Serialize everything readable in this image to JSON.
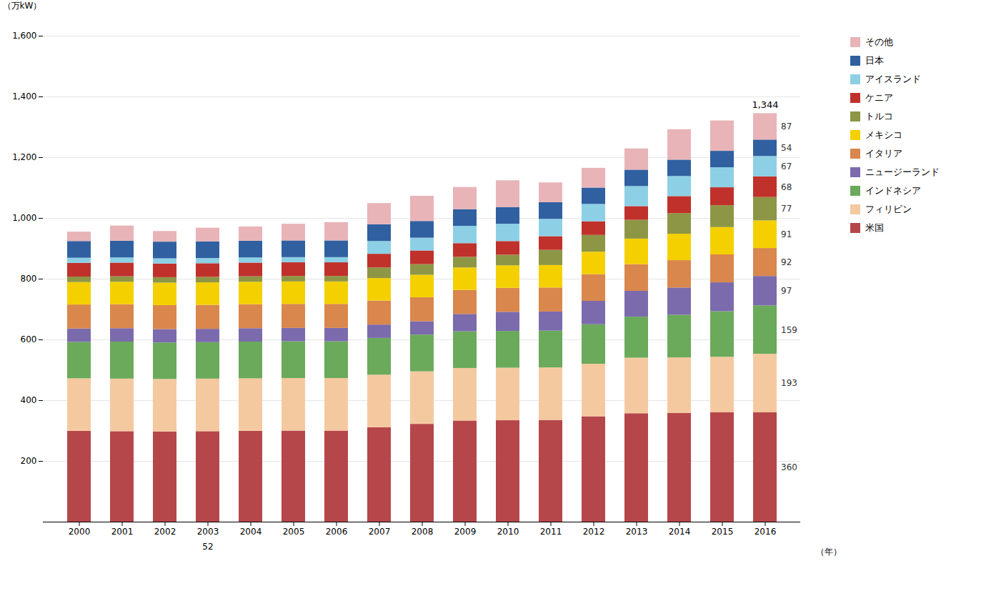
{
  "chart_data": {
    "type": "bar",
    "stacked": true,
    "categories": [
      "2000",
      "2001",
      "2002",
      "2003",
      "2004",
      "2005",
      "2006",
      "2007",
      "2008",
      "2009",
      "2010",
      "2011",
      "2012",
      "2013",
      "2014",
      "2015",
      "2016"
    ],
    "series": [
      {
        "name": "米国",
        "color": "#b5474a",
        "values": [
          299,
          298,
          297,
          298,
          299,
          300,
          300,
          311,
          322,
          333,
          334,
          335,
          347,
          357,
          358,
          360,
          360
        ],
        "value_labels": [
          null,
          null,
          null,
          null,
          null,
          null,
          null,
          null,
          null,
          null,
          null,
          null,
          null,
          null,
          null,
          null,
          "360"
        ]
      },
      {
        "name": "フィリピン",
        "color": "#f5c9a0",
        "values": [
          173,
          173,
          173,
          173,
          173,
          173,
          173,
          173,
          173,
          173,
          173,
          173,
          173,
          183,
          183,
          183,
          193
        ],
        "value_labels": [
          null,
          null,
          null,
          null,
          null,
          null,
          null,
          null,
          null,
          null,
          null,
          null,
          null,
          null,
          null,
          null,
          "193"
        ]
      },
      {
        "name": "インドネシア",
        "color": "#6aaa5a",
        "values": [
          120,
          122,
          120,
          120,
          121,
          121,
          121,
          121,
          121,
          121,
          121,
          121,
          130,
          135,
          140,
          150,
          159
        ],
        "value_labels": [
          null,
          null,
          null,
          null,
          null,
          null,
          null,
          null,
          null,
          null,
          null,
          null,
          null,
          null,
          null,
          null,
          "159"
        ]
      },
      {
        "name": "ニュージーランド",
        "color": "#7b6bad",
        "values": [
          44,
          44,
          44,
          44,
          44,
          44,
          44,
          44,
          44,
          57,
          63,
          63,
          77,
          85,
          90,
          95,
          97
        ],
        "value_labels": [
          null,
          null,
          null,
          null,
          null,
          null,
          null,
          null,
          null,
          null,
          null,
          null,
          null,
          null,
          null,
          null,
          "97"
        ]
      },
      {
        "name": "イタリア",
        "color": "#d9874c",
        "values": [
          79,
          79,
          79,
          79,
          79,
          79,
          79,
          79,
          79,
          79,
          79,
          79,
          88,
          88,
          90,
          92,
          92
        ],
        "value_labels": [
          null,
          null,
          null,
          null,
          null,
          null,
          null,
          null,
          null,
          null,
          null,
          null,
          null,
          null,
          null,
          null,
          "92"
        ]
      },
      {
        "name": "メキシコ",
        "color": "#f5d000",
        "values": [
          74,
          74,
          74,
          74,
          74,
          74,
          74,
          74,
          74,
          74,
          74,
          74,
          74,
          84,
          87,
          90,
          91
        ],
        "value_labels": [
          null,
          null,
          null,
          null,
          null,
          null,
          null,
          null,
          null,
          null,
          null,
          null,
          null,
          null,
          null,
          null,
          "91"
        ]
      },
      {
        "name": "トルコ",
        "color": "#8d9645",
        "values": [
          18,
          18,
          18,
          18,
          18,
          18,
          18,
          35,
          35,
          35,
          35,
          50,
          55,
          62,
          68,
          72,
          77
        ],
        "value_labels": [
          null,
          null,
          null,
          null,
          null,
          null,
          null,
          null,
          null,
          null,
          null,
          null,
          null,
          null,
          null,
          null,
          "77"
        ]
      },
      {
        "name": "ケニア",
        "color": "#c0312b",
        "values": [
          45,
          45,
          45,
          45,
          45,
          45,
          45,
          45,
          45,
          45,
          45,
          45,
          45,
          45,
          56,
          59,
          68
        ],
        "value_labels": [
          null,
          null,
          null,
          null,
          null,
          null,
          null,
          null,
          null,
          null,
          null,
          null,
          null,
          null,
          null,
          null,
          "68"
        ]
      },
      {
        "name": "アイスランド",
        "color": "#8dd0e5",
        "values": [
          17,
          17,
          17,
          17,
          17,
          17,
          17,
          42,
          42,
          57,
          57,
          57,
          57,
          66,
          66,
          66,
          67
        ],
        "value_labels": [
          null,
          null,
          null,
          null,
          null,
          null,
          null,
          null,
          null,
          null,
          null,
          null,
          null,
          null,
          null,
          null,
          "67"
        ]
      },
      {
        "name": "日本",
        "color": "#3060a0",
        "values": [
          55,
          55,
          55,
          55,
          55,
          55,
          55,
          55,
          55,
          55,
          55,
          55,
          54,
          54,
          54,
          54,
          54
        ],
        "value_labels": [
          null,
          null,
          null,
          null,
          null,
          null,
          null,
          null,
          null,
          null,
          null,
          null,
          null,
          null,
          null,
          null,
          "54"
        ]
      },
      {
        "name": "その他",
        "color": "#e8b4b8",
        "values": [
          31,
          50,
          35,
          45,
          47,
          55,
          60,
          70,
          83,
          73,
          88,
          65,
          65,
          70,
          100,
          100,
          87
        ],
        "value_labels": [
          null,
          null,
          null,
          null,
          null,
          null,
          null,
          null,
          null,
          null,
          null,
          null,
          null,
          null,
          null,
          null,
          "87"
        ]
      }
    ],
    "data_labels": true,
    "annotations": [
      {
        "text": "52",
        "x": "2003"
      },
      {
        "text": "1,344",
        "x": "2016",
        "y": 1344
      }
    ],
    "xlabel": "（年）",
    "ylabel": "（万kW）",
    "ylim": [
      0,
      1600
    ],
    "yticks": [
      200,
      400,
      600,
      800,
      {
        "value": 1000,
        "label": "1,000"
      },
      {
        "value": 1200,
        "label": "1,200"
      },
      {
        "value": 1400,
        "label": "1,400"
      },
      {
        "value": 1600,
        "label": "1,600"
      }
    ],
    "grid": true,
    "legend": "right"
  }
}
